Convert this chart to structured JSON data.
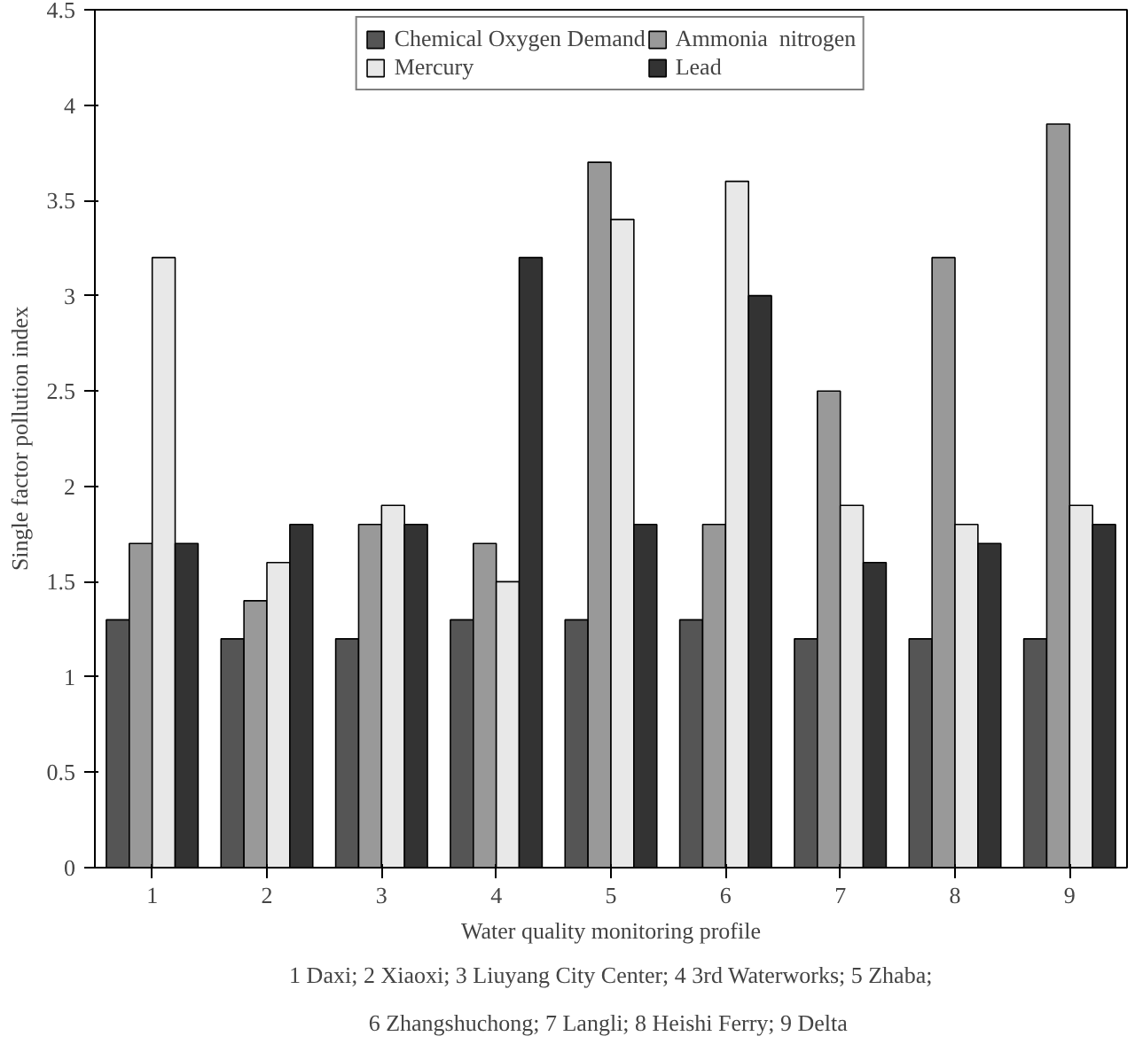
{
  "chart_data": {
    "type": "bar",
    "xlabel": "Water quality monitoring profile",
    "ylabel": "Single factor pollution index",
    "categories": [
      "1",
      "2",
      "3",
      "4",
      "5",
      "6",
      "7",
      "8",
      "9"
    ],
    "series": [
      {
        "name": "Chemical Oxygen Demand",
        "color": "#555555",
        "values": [
          1.3,
          1.2,
          1.2,
          1.3,
          1.3,
          1.3,
          1.2,
          1.2,
          1.2
        ]
      },
      {
        "name": "Ammonia  nitrogen",
        "color": "#999999",
        "values": [
          1.7,
          1.4,
          1.8,
          1.7,
          3.7,
          1.8,
          2.5,
          3.2,
          3.9
        ]
      },
      {
        "name": "Mercury",
        "color": "#e8e8e8",
        "values": [
          3.2,
          1.6,
          1.9,
          1.5,
          3.4,
          3.6,
          1.9,
          1.8,
          1.9
        ]
      },
      {
        "name": "Lead",
        "color": "#333333",
        "values": [
          1.7,
          1.8,
          1.8,
          3.2,
          1.8,
          3.0,
          1.6,
          1.7,
          1.8
        ]
      }
    ],
    "ylim": [
      0,
      4.5
    ],
    "yticks": [
      0,
      0.5,
      1,
      1.5,
      2,
      2.5,
      3,
      3.5,
      4,
      4.5
    ],
    "grid": false,
    "legend": "top",
    "annotations": [
      "1 Daxi; 2 Xiaoxi; 3 Liuyang City Center; 4 3rd Waterworks; 5 Zhaba;",
      "6 Zhangshuchong;  7 Langli; 8 Heishi Ferry; 9 Delta"
    ]
  }
}
